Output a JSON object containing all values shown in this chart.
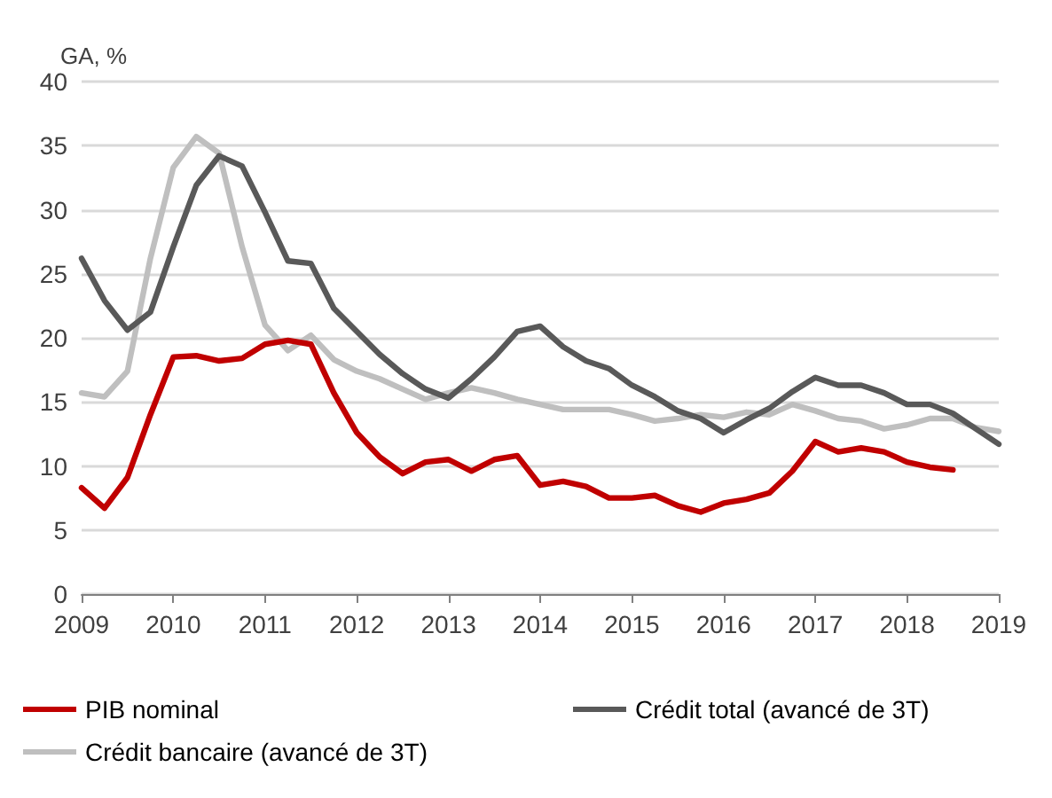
{
  "chart_data": {
    "type": "line",
    "ylabel": "GA, %",
    "x": [
      2009,
      2009.25,
      2009.5,
      2009.75,
      2010,
      2010.25,
      2010.5,
      2010.75,
      2011,
      2011.25,
      2011.5,
      2011.75,
      2012,
      2012.25,
      2012.5,
      2012.75,
      2013,
      2013.25,
      2013.5,
      2013.75,
      2014,
      2014.25,
      2014.5,
      2014.75,
      2015,
      2015.25,
      2015.5,
      2015.75,
      2016,
      2016.25,
      2016.5,
      2016.75,
      2017,
      2017.25,
      2017.5,
      2017.75,
      2018,
      2018.25,
      2018.5,
      2018.75,
      2019
    ],
    "series": [
      {
        "name": "PIB nominal",
        "color": "#c00000",
        "values": [
          8.3,
          6.7,
          9.1,
          14.0,
          18.5,
          18.6,
          18.2,
          18.4,
          19.5,
          19.8,
          19.5,
          15.7,
          12.6,
          10.7,
          9.4,
          10.3,
          10.5,
          9.6,
          10.5,
          10.8,
          8.5,
          8.8,
          8.4,
          7.5,
          7.5,
          7.7,
          6.9,
          6.4,
          7.1,
          7.4,
          7.9,
          9.6,
          11.9,
          11.1,
          11.4,
          11.1,
          10.3,
          9.9,
          9.7,
          null,
          null
        ]
      },
      {
        "name": "Crédit total (avancé de 3T)",
        "color": "#595959",
        "values": [
          26.2,
          22.9,
          20.6,
          22.0,
          27.1,
          31.9,
          34.2,
          33.4,
          29.8,
          26.0,
          25.8,
          22.3,
          20.5,
          18.7,
          17.2,
          16.0,
          15.3,
          16.8,
          18.5,
          20.5,
          20.9,
          19.3,
          18.2,
          17.6,
          16.3,
          15.4,
          14.3,
          13.7,
          12.6,
          13.6,
          14.5,
          15.8,
          16.9,
          16.3,
          16.3,
          15.7,
          14.8,
          14.8,
          14.1,
          12.9,
          11.7
        ]
      },
      {
        "name": "Crédit bancaire (avancé de 3T)",
        "color": "#bfbfbf",
        "values": [
          15.7,
          15.4,
          17.4,
          26.2,
          33.3,
          35.7,
          34.4,
          27.1,
          21.0,
          19.0,
          20.2,
          18.3,
          17.4,
          16.8,
          16.0,
          15.2,
          15.7,
          16.1,
          15.7,
          15.2,
          14.8,
          14.4,
          14.4,
          14.4,
          14.0,
          13.5,
          13.7,
          14.0,
          13.8,
          14.2,
          14.0,
          14.8,
          14.3,
          13.7,
          13.5,
          12.9,
          13.2,
          13.7,
          13.7,
          13.0,
          12.7
        ]
      }
    ],
    "xlim": [
      2009,
      2019
    ],
    "xticks": [
      2009,
      2010,
      2011,
      2012,
      2013,
      2014,
      2015,
      2016,
      2017,
      2018,
      2019
    ],
    "ylim": [
      0,
      40
    ],
    "yticks": [
      0,
      5,
      10,
      15,
      20,
      25,
      30,
      35,
      40
    ],
    "grid": "y",
    "legend": "bottom",
    "marker": "none",
    "line_style": "solid"
  }
}
